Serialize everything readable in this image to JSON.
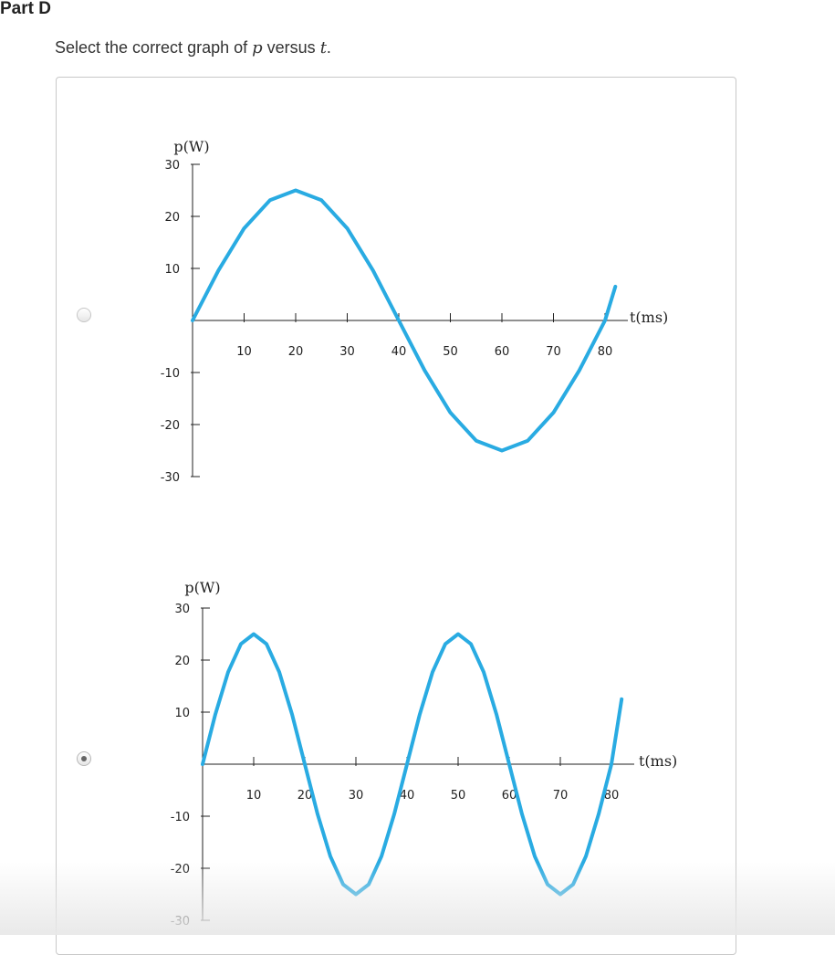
{
  "part": {
    "title": "Part D"
  },
  "question": {
    "text_before": "Select the correct graph of ",
    "var_p": "p",
    "text_middle": " versus ",
    "var_t": "t",
    "text_after": "."
  },
  "options": [
    {
      "selected": false
    },
    {
      "selected": true
    }
  ],
  "chart_data": [
    {
      "type": "line",
      "ylabel": "p(W)",
      "xlabel": "t(ms)",
      "x_ticks": [
        10,
        20,
        30,
        40,
        50,
        60,
        70,
        80
      ],
      "y_ticks": [
        30,
        20,
        10,
        -10,
        -20,
        -30
      ],
      "xlim": [
        0,
        80
      ],
      "ylim": [
        -30,
        30
      ],
      "series_color": "#29abe2",
      "series": [
        {
          "x": [
            0,
            5,
            10,
            15,
            20,
            25,
            30,
            35,
            40,
            45,
            50,
            55,
            60,
            65,
            70,
            75,
            80,
            82
          ],
          "y": [
            0,
            9.6,
            17.7,
            23.1,
            25,
            23.1,
            17.7,
            9.6,
            0,
            -9.6,
            -17.7,
            -23.1,
            -25,
            -23.1,
            -17.7,
            -9.6,
            0,
            6.5
          ]
        }
      ]
    },
    {
      "type": "line",
      "ylabel": "p(W)",
      "xlabel": "t(ms)",
      "x_ticks": [
        10,
        20,
        30,
        40,
        50,
        60,
        70,
        80
      ],
      "y_ticks": [
        30,
        20,
        10,
        -10,
        -20,
        -30
      ],
      "xlim": [
        0,
        80
      ],
      "ylim": [
        -30,
        30
      ],
      "series_color": "#29abe2",
      "series": [
        {
          "x": [
            0,
            2.5,
            5,
            7.5,
            10,
            12.5,
            15,
            17.5,
            20,
            22.5,
            25,
            27.5,
            30,
            32.5,
            35,
            37.5,
            40,
            42.5,
            45,
            47.5,
            50,
            52.5,
            55,
            57.5,
            60,
            62.5,
            65,
            67.5,
            70,
            72.5,
            75,
            77.5,
            80,
            82
          ],
          "y": [
            0,
            9.6,
            17.7,
            23.1,
            25,
            23.1,
            17.7,
            9.6,
            0,
            -9.6,
            -17.7,
            -23.1,
            -25,
            -23.1,
            -17.7,
            -9.6,
            0,
            9.6,
            17.7,
            23.1,
            25,
            23.1,
            17.7,
            9.6,
            0,
            -9.6,
            -17.7,
            -23.1,
            -25,
            -23.1,
            -17.7,
            -9.6,
            0,
            12.5
          ]
        }
      ]
    }
  ]
}
